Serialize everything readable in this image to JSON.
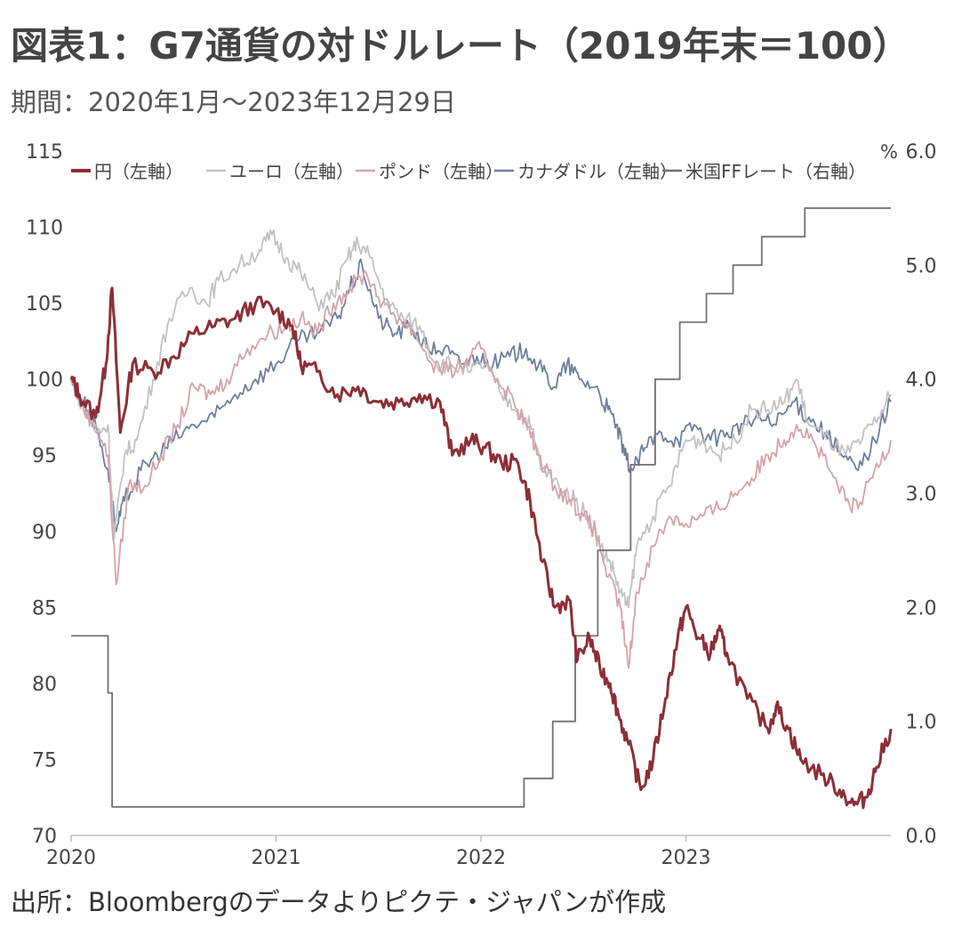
{
  "header": {
    "title": "図表1：G7通貨の対ドルレート（2019年末＝100）",
    "period": "期間：2020年1月～2023年12月29日"
  },
  "footer": {
    "source": "出所：Bloombergのデータよりピクテ・ジャパンが作成"
  },
  "colors": {
    "yen": "#8b2f35",
    "euro": "#c2c2c2",
    "pound": "#d6a2a6",
    "cad": "#6d7f9c",
    "ff": "#707070",
    "axis": "#bfbfbf"
  },
  "chart_data": {
    "type": "line",
    "title": "図表1：G7通貨の対ドルレート（2019年末＝100）",
    "x_ticks": [
      "2020",
      "2021",
      "2022",
      "2023"
    ],
    "x_range": [
      2020.0,
      2024.0
    ],
    "y_left": {
      "ylim": [
        70,
        115
      ],
      "ticks": [
        "70",
        "75",
        "80",
        "85",
        "90",
        "95",
        "100",
        "105",
        "110",
        "115"
      ]
    },
    "y_right": {
      "ylim": [
        0.0,
        6.0
      ],
      "unit": "%",
      "ticks": [
        "0.0",
        "1.0",
        "2.0",
        "3.0",
        "4.0",
        "5.0",
        "6.0"
      ]
    },
    "legend": [
      "円（左軸）",
      "ユーロ（左軸）",
      "ポンド（左軸）",
      "カナダドル（左軸）",
      "米国FFレート（右軸）"
    ],
    "legend_position": "top",
    "grid": false,
    "series": [
      {
        "name": "円（左軸）",
        "axis": "left",
        "color": "#8b2f35",
        "points": [
          [
            2020.0,
            100
          ],
          [
            2020.04,
            99
          ],
          [
            2020.12,
            97.5
          ],
          [
            2020.17,
            101
          ],
          [
            2020.2,
            106
          ],
          [
            2020.24,
            96.5
          ],
          [
            2020.3,
            101
          ],
          [
            2020.4,
            100.5
          ],
          [
            2020.5,
            101.5
          ],
          [
            2020.6,
            103
          ],
          [
            2020.7,
            103.5
          ],
          [
            2020.8,
            104
          ],
          [
            2020.9,
            105
          ],
          [
            2021.0,
            104.5
          ],
          [
            2021.08,
            103.5
          ],
          [
            2021.12,
            101
          ],
          [
            2021.2,
            100.5
          ],
          [
            2021.3,
            99
          ],
          [
            2021.4,
            99.5
          ],
          [
            2021.5,
            98.5
          ],
          [
            2021.6,
            98.5
          ],
          [
            2021.7,
            99
          ],
          [
            2021.8,
            98.5
          ],
          [
            2021.86,
            95
          ],
          [
            2021.95,
            96
          ],
          [
            2022.02,
            95.5
          ],
          [
            2022.1,
            94.5
          ],
          [
            2022.18,
            94.5
          ],
          [
            2022.24,
            92
          ],
          [
            2022.3,
            88
          ],
          [
            2022.36,
            85
          ],
          [
            2022.43,
            85.5
          ],
          [
            2022.47,
            81.5
          ],
          [
            2022.53,
            83
          ],
          [
            2022.58,
            81
          ],
          [
            2022.63,
            80
          ],
          [
            2022.67,
            78
          ],
          [
            2022.72,
            76
          ],
          [
            2022.78,
            73
          ],
          [
            2022.84,
            75
          ],
          [
            2022.9,
            79
          ],
          [
            2022.96,
            83
          ],
          [
            2023.0,
            85
          ],
          [
            2023.06,
            83
          ],
          [
            2023.12,
            82
          ],
          [
            2023.16,
            83.5
          ],
          [
            2023.2,
            82
          ],
          [
            2023.3,
            79
          ],
          [
            2023.4,
            77
          ],
          [
            2023.44,
            78.5
          ],
          [
            2023.5,
            77
          ],
          [
            2023.56,
            75
          ],
          [
            2023.66,
            74
          ],
          [
            2023.75,
            73
          ],
          [
            2023.82,
            72
          ],
          [
            2023.88,
            72.5
          ],
          [
            2023.93,
            74.5
          ],
          [
            2024.0,
            77
          ]
        ]
      },
      {
        "name": "ユーロ（左軸）",
        "axis": "left",
        "color": "#c2c2c2",
        "points": [
          [
            2020.0,
            100
          ],
          [
            2020.05,
            98.5
          ],
          [
            2020.12,
            96.5
          ],
          [
            2020.18,
            97
          ],
          [
            2020.21,
            89.5
          ],
          [
            2020.26,
            95
          ],
          [
            2020.32,
            96
          ],
          [
            2020.4,
            100
          ],
          [
            2020.48,
            104
          ],
          [
            2020.58,
            106
          ],
          [
            2020.66,
            105
          ],
          [
            2020.72,
            106.5
          ],
          [
            2020.82,
            107.5
          ],
          [
            2020.92,
            108.5
          ],
          [
            2020.98,
            109.5
          ],
          [
            2021.05,
            108
          ],
          [
            2021.12,
            107
          ],
          [
            2021.2,
            105
          ],
          [
            2021.28,
            105.5
          ],
          [
            2021.35,
            108
          ],
          [
            2021.4,
            109
          ],
          [
            2021.46,
            108
          ],
          [
            2021.54,
            105
          ],
          [
            2021.62,
            104
          ],
          [
            2021.7,
            103.5
          ],
          [
            2021.78,
            101
          ],
          [
            2021.85,
            101
          ],
          [
            2021.95,
            100.5
          ],
          [
            2022.02,
            101
          ],
          [
            2022.1,
            99
          ],
          [
            2022.18,
            98
          ],
          [
            2022.24,
            97
          ],
          [
            2022.3,
            94
          ],
          [
            2022.38,
            93
          ],
          [
            2022.46,
            92
          ],
          [
            2022.52,
            91
          ],
          [
            2022.58,
            89
          ],
          [
            2022.63,
            88
          ],
          [
            2022.68,
            86
          ],
          [
            2022.72,
            85
          ],
          [
            2022.76,
            89
          ],
          [
            2022.84,
            91
          ],
          [
            2022.92,
            93
          ],
          [
            2023.0,
            96
          ],
          [
            2023.08,
            96
          ],
          [
            2023.16,
            95
          ],
          [
            2023.24,
            96
          ],
          [
            2023.32,
            98
          ],
          [
            2023.4,
            98
          ],
          [
            2023.48,
            98.5
          ],
          [
            2023.54,
            100
          ],
          [
            2023.6,
            97
          ],
          [
            2023.7,
            96
          ],
          [
            2023.78,
            95
          ],
          [
            2023.86,
            96
          ],
          [
            2023.94,
            97.5
          ],
          [
            2024.0,
            99
          ]
        ]
      },
      {
        "name": "ポンド（左軸）",
        "axis": "left",
        "color": "#d6a2a6",
        "points": [
          [
            2020.0,
            100
          ],
          [
            2020.06,
            98
          ],
          [
            2020.12,
            97
          ],
          [
            2020.18,
            95
          ],
          [
            2020.22,
            86.5
          ],
          [
            2020.28,
            93
          ],
          [
            2020.36,
            93
          ],
          [
            2020.44,
            95
          ],
          [
            2020.52,
            97
          ],
          [
            2020.6,
            99.5
          ],
          [
            2020.68,
            99
          ],
          [
            2020.76,
            100
          ],
          [
            2020.86,
            102
          ],
          [
            2020.96,
            103
          ],
          [
            2021.05,
            103.5
          ],
          [
            2021.12,
            104
          ],
          [
            2021.2,
            103
          ],
          [
            2021.28,
            105
          ],
          [
            2021.36,
            106
          ],
          [
            2021.44,
            107
          ],
          [
            2021.52,
            105
          ],
          [
            2021.6,
            104
          ],
          [
            2021.68,
            103
          ],
          [
            2021.76,
            101
          ],
          [
            2021.84,
            100.5
          ],
          [
            2021.92,
            101
          ],
          [
            2022.0,
            102
          ],
          [
            2022.08,
            100
          ],
          [
            2022.16,
            98.5
          ],
          [
            2022.22,
            97
          ],
          [
            2022.28,
            95
          ],
          [
            2022.36,
            93
          ],
          [
            2022.44,
            92
          ],
          [
            2022.5,
            91
          ],
          [
            2022.56,
            90
          ],
          [
            2022.62,
            87
          ],
          [
            2022.68,
            85
          ],
          [
            2022.72,
            81
          ],
          [
            2022.76,
            86
          ],
          [
            2022.84,
            89
          ],
          [
            2022.92,
            91
          ],
          [
            2023.0,
            90.5
          ],
          [
            2023.08,
            91
          ],
          [
            2023.16,
            91.5
          ],
          [
            2023.24,
            92.5
          ],
          [
            2023.32,
            93.5
          ],
          [
            2023.4,
            95
          ],
          [
            2023.48,
            96
          ],
          [
            2023.54,
            97
          ],
          [
            2023.62,
            96
          ],
          [
            2023.7,
            94
          ],
          [
            2023.78,
            92
          ],
          [
            2023.84,
            91.5
          ],
          [
            2023.92,
            94
          ],
          [
            2024.0,
            96
          ]
        ]
      },
      {
        "name": "カナダドル（左軸）",
        "axis": "left",
        "color": "#6d7f9c",
        "points": [
          [
            2020.0,
            100
          ],
          [
            2020.06,
            98.5
          ],
          [
            2020.12,
            97
          ],
          [
            2020.18,
            94
          ],
          [
            2020.22,
            90
          ],
          [
            2020.26,
            92
          ],
          [
            2020.34,
            94
          ],
          [
            2020.42,
            95
          ],
          [
            2020.5,
            96
          ],
          [
            2020.6,
            97
          ],
          [
            2020.7,
            97.5
          ],
          [
            2020.8,
            99
          ],
          [
            2020.9,
            100
          ],
          [
            2021.0,
            101
          ],
          [
            2021.1,
            102.5
          ],
          [
            2021.2,
            103
          ],
          [
            2021.3,
            104
          ],
          [
            2021.36,
            106
          ],
          [
            2021.42,
            107.5
          ],
          [
            2021.5,
            104
          ],
          [
            2021.58,
            103
          ],
          [
            2021.66,
            103.5
          ],
          [
            2021.74,
            102
          ],
          [
            2021.82,
            102
          ],
          [
            2021.9,
            101
          ],
          [
            2021.98,
            101.5
          ],
          [
            2022.06,
            101
          ],
          [
            2022.14,
            101.5
          ],
          [
            2022.22,
            102
          ],
          [
            2022.3,
            100.5
          ],
          [
            2022.36,
            99.5
          ],
          [
            2022.42,
            101
          ],
          [
            2022.48,
            100
          ],
          [
            2022.56,
            99.5
          ],
          [
            2022.62,
            98
          ],
          [
            2022.66,
            97
          ],
          [
            2022.7,
            95
          ],
          [
            2022.74,
            94
          ],
          [
            2022.8,
            95.5
          ],
          [
            2022.88,
            96.5
          ],
          [
            2022.96,
            96
          ],
          [
            2023.04,
            97
          ],
          [
            2023.12,
            96
          ],
          [
            2023.2,
            96.5
          ],
          [
            2023.28,
            97
          ],
          [
            2023.36,
            97.5
          ],
          [
            2023.44,
            97
          ],
          [
            2023.52,
            98.5
          ],
          [
            2023.6,
            97.5
          ],
          [
            2023.68,
            96.5
          ],
          [
            2023.76,
            95
          ],
          [
            2023.84,
            94
          ],
          [
            2023.92,
            96
          ],
          [
            2024.0,
            98.5
          ]
        ]
      },
      {
        "name": "米国FFレート（右軸）",
        "axis": "right",
        "color": "#707070",
        "step": true,
        "points": [
          [
            2020.0,
            1.75
          ],
          [
            2020.18,
            1.25
          ],
          [
            2020.2,
            0.25
          ],
          [
            2022.21,
            0.5
          ],
          [
            2022.35,
            1.0
          ],
          [
            2022.46,
            1.75
          ],
          [
            2022.57,
            2.5
          ],
          [
            2022.73,
            3.25
          ],
          [
            2022.85,
            4.0
          ],
          [
            2022.97,
            4.5
          ],
          [
            2023.1,
            4.75
          ],
          [
            2023.23,
            5.0
          ],
          [
            2023.37,
            5.25
          ],
          [
            2023.58,
            5.5
          ],
          [
            2024.0,
            5.5
          ]
        ]
      }
    ]
  }
}
